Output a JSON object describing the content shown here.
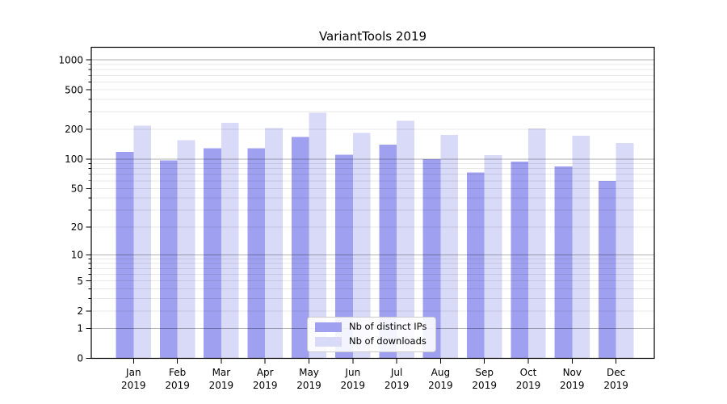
{
  "chart_data": {
    "type": "bar",
    "title": "VariantTools 2019",
    "categories": [
      "Jan 2019",
      "Feb 2019",
      "Mar 2019",
      "Apr 2019",
      "May 2019",
      "Jun 2019",
      "Jul 2019",
      "Aug 2019",
      "Sep 2019",
      "Oct 2019",
      "Nov 2019",
      "Dec 2019"
    ],
    "series": [
      {
        "name": "Nb of distinct IPs",
        "color": "#a0a0f0",
        "values": [
          118,
          97,
          128,
          128,
          167,
          111,
          140,
          100,
          73,
          94,
          84,
          60
        ]
      },
      {
        "name": "Nb of downloads",
        "color": "#d9d9f8",
        "values": [
          218,
          155,
          232,
          205,
          293,
          184,
          243,
          176,
          110,
          203,
          172,
          146
        ]
      }
    ],
    "y_axis": {
      "scale": "log10(1+v)",
      "ticks": [
        0,
        1,
        2,
        5,
        10,
        20,
        50,
        100,
        200,
        500,
        1000
      ],
      "range": [
        0,
        1340
      ]
    },
    "legend": {
      "position": "lower center",
      "entries": [
        "Nb of distinct IPs",
        "Nb of downloads"
      ]
    },
    "grid": {
      "show": true,
      "orientation": "horizontal",
      "above_bars": true
    }
  },
  "colors": {
    "background": "#ffffff",
    "axis": "#000000",
    "grid_major": "rgba(0,0,0,0.30)",
    "grid_minor": "rgba(0,0,0,0.09)",
    "legend_border": "#cccccc",
    "text": "#000000"
  }
}
